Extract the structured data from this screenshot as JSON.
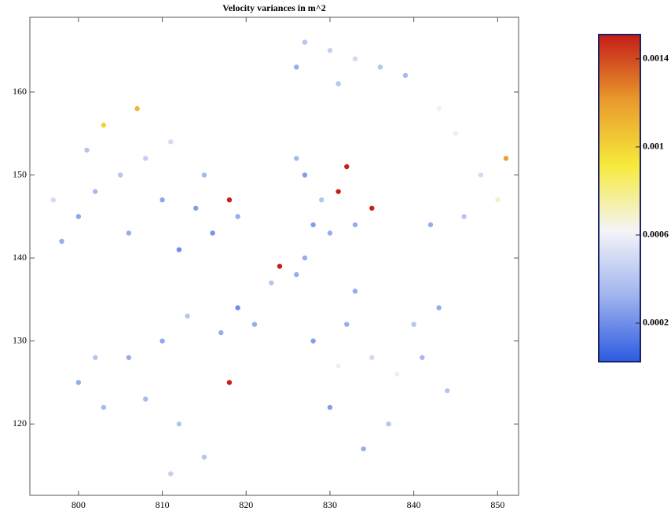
{
  "chart_data": {
    "type": "scatter",
    "title": "Velocity variances in m^2",
    "x": [
      798,
      800,
      802,
      805,
      808,
      811,
      814,
      816,
      812,
      806,
      810,
      818,
      819,
      803,
      807,
      797,
      801,
      815,
      827,
      829,
      831,
      833,
      835,
      828,
      830,
      832,
      826,
      845,
      848,
      850,
      843,
      846,
      851,
      842,
      827,
      830,
      833,
      836,
      839,
      826,
      831,
      828,
      832,
      835,
      838,
      840,
      843,
      830,
      834,
      837,
      831,
      841,
      833,
      844,
      800,
      803,
      806,
      810,
      813,
      817,
      819,
      808,
      812,
      815,
      811,
      818,
      821,
      802,
      824,
      826,
      823,
      827
    ],
    "y": [
      142,
      145,
      148,
      150,
      152,
      154,
      146,
      143,
      141,
      143,
      147,
      147,
      145,
      156,
      158,
      147,
      153,
      150,
      150,
      147,
      148,
      144,
      146,
      144,
      143,
      151,
      152,
      155,
      150,
      147,
      158,
      145,
      152,
      144,
      166,
      165,
      164,
      163,
      162,
      163,
      161,
      130,
      132,
      128,
      126,
      132,
      134,
      122,
      117,
      120,
      127,
      128,
      136,
      124,
      125,
      122,
      128,
      130,
      133,
      131,
      134,
      123,
      120,
      116,
      114,
      125,
      132,
      128,
      139,
      138,
      137,
      140
    ],
    "values": [
      0.0003,
      0.00028,
      0.00035,
      0.0004,
      0.00045,
      0.0005,
      0.00025,
      0.00022,
      0.0002,
      0.0003,
      0.00028,
      0.0015,
      0.0003,
      0.001,
      0.0011,
      0.0005,
      0.0004,
      0.00035,
      0.00025,
      0.0004,
      0.0015,
      0.0003,
      0.0015,
      0.00025,
      0.0003,
      0.0015,
      0.00035,
      0.0006,
      0.0005,
      0.0007,
      0.0006,
      0.0004,
      0.0012,
      0.0003,
      0.0004,
      0.00045,
      0.0005,
      0.0004,
      0.00035,
      0.0003,
      0.0004,
      0.00025,
      0.0003,
      0.0005,
      0.0006,
      0.0004,
      0.0003,
      0.00025,
      0.0003,
      0.0004,
      0.0006,
      0.00035,
      0.0003,
      0.0004,
      0.0003,
      0.00035,
      0.0003,
      0.00028,
      0.0004,
      0.0003,
      0.0002,
      0.00035,
      0.0004,
      0.0004,
      0.00045,
      0.0015,
      0.0003,
      0.0004,
      0.0015,
      0.0003,
      0.0004,
      0.0003
    ],
    "xlim": [
      794.2,
      852.5
    ],
    "ylim": [
      111.4,
      169.0
    ],
    "xticks": [
      800,
      810,
      820,
      830,
      840,
      850
    ],
    "yticks": [
      120,
      130,
      140,
      150,
      160
    ],
    "clim": [
      2.5e-05,
      0.00151
    ],
    "cticks": [
      0.0002,
      0.0006,
      0.001,
      0.0014
    ],
    "colorscale": [
      "#2c5ae0",
      "#9fb3ee",
      "#f4f4f8",
      "#f6ea3c",
      "#e99a2c",
      "#c41c18"
    ]
  }
}
